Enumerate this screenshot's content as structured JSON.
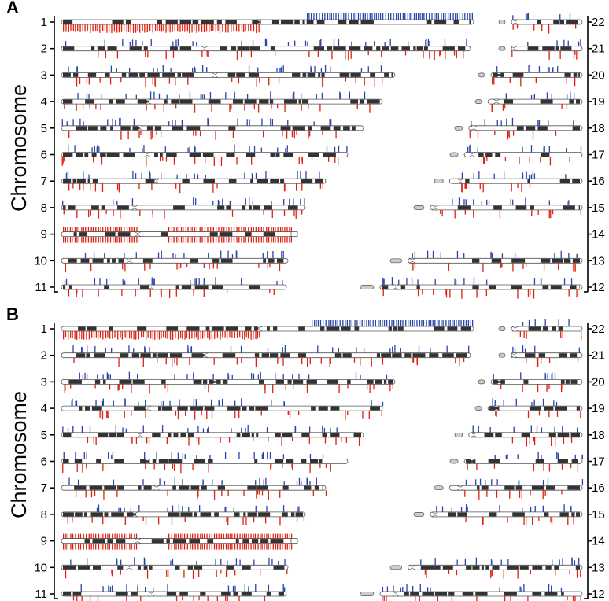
{
  "y_axis_label": "Chromosome",
  "colors": {
    "up": "#2a44a8",
    "down": "#e02010",
    "band_dark": "#333333",
    "band_light": "#ffffff"
  },
  "panels": [
    {
      "letter": "A",
      "left_chromosomes": [
        "1",
        "2",
        "3",
        "4",
        "5",
        "6",
        "7",
        "8",
        "9",
        "10",
        "11"
      ],
      "right_chromosomes": [
        "22",
        "21",
        "20",
        "19",
        "18",
        "17",
        "16",
        "15",
        "14",
        "13",
        "12"
      ]
    },
    {
      "letter": "B",
      "left_chromosomes": [
        "1",
        "2",
        "3",
        "4",
        "5",
        "6",
        "7",
        "8",
        "9",
        "10",
        "11"
      ],
      "right_chromosomes": [
        "22",
        "21",
        "20",
        "19",
        "18",
        "17",
        "16",
        "15",
        "14",
        "13",
        "12"
      ]
    }
  ]
}
